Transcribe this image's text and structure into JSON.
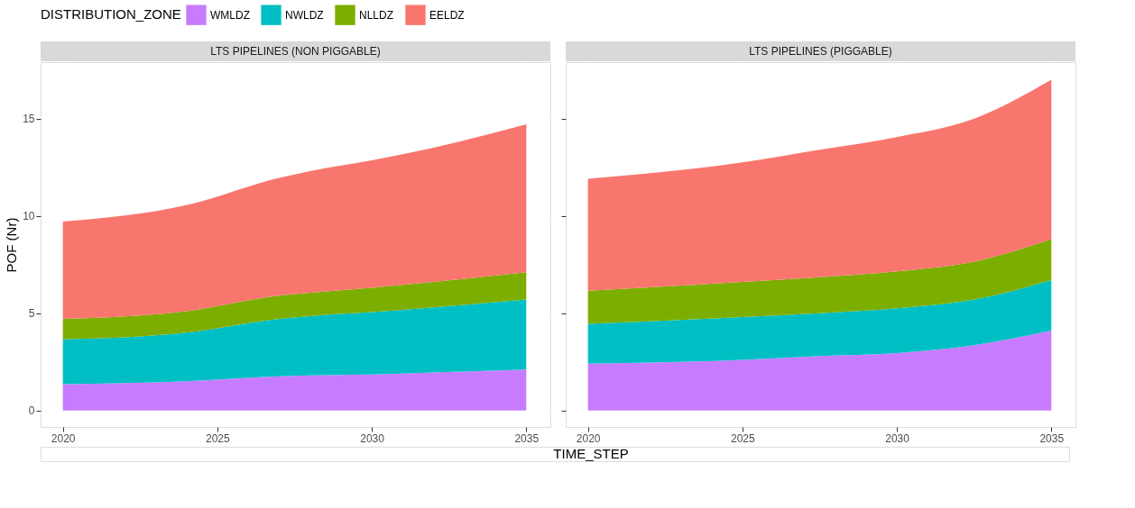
{
  "chart_data": [
    {
      "type": "area",
      "stacked": true,
      "title": "LTS PIPELINES (NON PIGGABLE)",
      "xlabel": "TIME_STEP",
      "ylabel": "POF (Nr)",
      "legend_title": "DISTRIBUTION_ZONE",
      "legend": "top",
      "grid": true,
      "x": [
        2020,
        2024,
        2027,
        2028,
        2030,
        2032,
        2035
      ],
      "series": [
        {
          "name": "WMLDZ",
          "color": "#c77cff",
          "values": [
            1.35,
            1.5,
            1.75,
            1.8,
            1.85,
            1.95,
            2.1
          ]
        },
        {
          "name": "NWLDZ",
          "color": "#00bfc4",
          "values": [
            2.3,
            2.5,
            2.95,
            3.05,
            3.2,
            3.35,
            3.6
          ]
        },
        {
          "name": "NLLDZ",
          "color": "#7cae00",
          "values": [
            1.05,
            1.1,
            1.2,
            1.2,
            1.25,
            1.3,
            1.4
          ]
        },
        {
          "name": "EELDZ",
          "color": "#f8766d",
          "values": [
            5.0,
            5.45,
            6.05,
            6.25,
            6.55,
            6.9,
            7.6
          ]
        }
      ],
      "xlim": [
        2019.28,
        2035.78
      ],
      "ylim": [
        -0.85,
        17.9
      ],
      "xticks": [
        2020,
        2025,
        2030,
        2035
      ],
      "yticks": [
        0,
        5,
        10,
        15
      ]
    },
    {
      "type": "area",
      "stacked": true,
      "title": "LTS PIPELINES (PIGGABLE)",
      "grid": true,
      "tick_labels": "x",
      "x": [
        2020,
        2025,
        2027.5,
        2030,
        2032.5,
        2035
      ],
      "series": [
        {
          "name": "WMLDZ",
          "color": "#c77cff",
          "values": [
            2.4,
            2.6,
            2.8,
            2.95,
            3.35,
            4.1
          ]
        },
        {
          "name": "NWLDZ",
          "color": "#00bfc4",
          "values": [
            2.05,
            2.2,
            2.2,
            2.3,
            2.35,
            2.6
          ]
        },
        {
          "name": "NLLDZ",
          "color": "#7cae00",
          "values": [
            1.7,
            1.8,
            1.85,
            1.9,
            1.95,
            2.1
          ]
        },
        {
          "name": "EELDZ",
          "color": "#f8766d",
          "values": [
            5.75,
            6.15,
            6.55,
            6.9,
            7.35,
            8.2
          ]
        }
      ],
      "xlim": [
        2019.28,
        2035.78
      ],
      "ylim": [
        -0.85,
        17.9
      ],
      "xticks": [
        2020,
        2025,
        2030,
        2035
      ],
      "yticks": [
        0,
        5,
        10,
        15
      ]
    }
  ]
}
